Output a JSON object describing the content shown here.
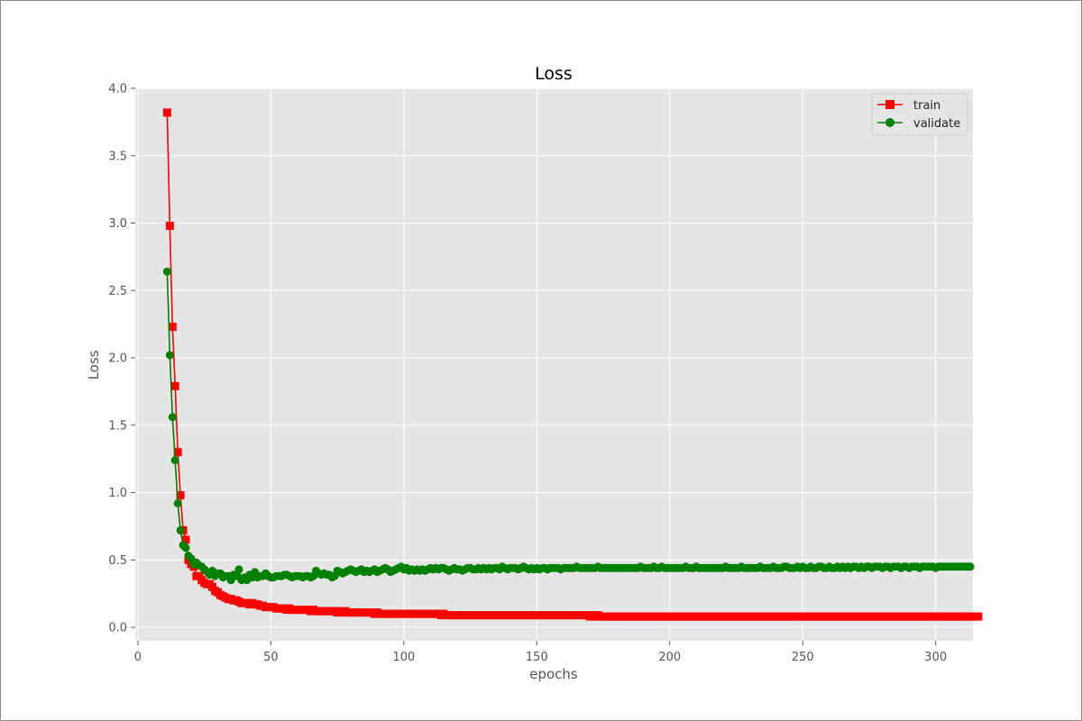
{
  "chart_data": {
    "type": "line",
    "title": "Loss",
    "xlabel": "epochs",
    "ylabel": "Loss",
    "xlim": [
      -1,
      314
    ],
    "ylim": [
      -0.1,
      4.0
    ],
    "xticks": [
      0,
      50,
      100,
      150,
      200,
      250,
      300
    ],
    "yticks": [
      0.0,
      0.5,
      1.0,
      1.5,
      2.0,
      2.5,
      3.0,
      3.5,
      4.0
    ],
    "xtick_labels": [
      "0",
      "50",
      "100",
      "150",
      "200",
      "250",
      "300"
    ],
    "ytick_labels": [
      "0.0",
      "0.5",
      "1.0",
      "1.5",
      "2.0",
      "2.5",
      "3.0",
      "3.5",
      "4.0"
    ],
    "grid": true,
    "legend_position": "top-right",
    "x_start": 11,
    "series": [
      {
        "name": "train",
        "color": "#ff0000",
        "marker": "square",
        "values": [
          3.82,
          2.98,
          2.23,
          1.79,
          1.3,
          0.98,
          0.72,
          0.65,
          0.5,
          0.47,
          0.45,
          0.38,
          0.38,
          0.35,
          0.33,
          0.32,
          0.32,
          0.3,
          0.27,
          0.26,
          0.24,
          0.23,
          0.22,
          0.21,
          0.21,
          0.2,
          0.2,
          0.19,
          0.18,
          0.18,
          0.18,
          0.17,
          0.18,
          0.17,
          0.17,
          0.16,
          0.16,
          0.15,
          0.15,
          0.15,
          0.15,
          0.14,
          0.14,
          0.14,
          0.14,
          0.13,
          0.14,
          0.13,
          0.13,
          0.13,
          0.13,
          0.13,
          0.13,
          0.13,
          0.12,
          0.13,
          0.12,
          0.12,
          0.12,
          0.12,
          0.12,
          0.12,
          0.12,
          0.12,
          0.11,
          0.12,
          0.11,
          0.12,
          0.11,
          0.11,
          0.11,
          0.11,
          0.11,
          0.11,
          0.11,
          0.11,
          0.11,
          0.11,
          0.1,
          0.11,
          0.1,
          0.1,
          0.1,
          0.1,
          0.1,
          0.1,
          0.1,
          0.1,
          0.1,
          0.1,
          0.1,
          0.1,
          0.1,
          0.1,
          0.1,
          0.1,
          0.1,
          0.1,
          0.1,
          0.1,
          0.1,
          0.1,
          0.1,
          0.09,
          0.1,
          0.09,
          0.09,
          0.09,
          0.09,
          0.09,
          0.09,
          0.09,
          0.09,
          0.09,
          0.09,
          0.09,
          0.09,
          0.09,
          0.09,
          0.09,
          0.09,
          0.09,
          0.09,
          0.09,
          0.09,
          0.09,
          0.09,
          0.09,
          0.09,
          0.09,
          0.09,
          0.09,
          0.09,
          0.09,
          0.09,
          0.09,
          0.09,
          0.09,
          0.09,
          0.09,
          0.09,
          0.09,
          0.09,
          0.09,
          0.09,
          0.09,
          0.09,
          0.09,
          0.09,
          0.09,
          0.09,
          0.09,
          0.09,
          0.09,
          0.09,
          0.09,
          0.09,
          0.09,
          0.09,
          0.08,
          0.09,
          0.08,
          0.09,
          0.08,
          0.08,
          0.08,
          0.08,
          0.08,
          0.08,
          0.08,
          0.08,
          0.08,
          0.08,
          0.08,
          0.08,
          0.08,
          0.08,
          0.08,
          0.08,
          0.08,
          0.08,
          0.08,
          0.08,
          0.08,
          0.08,
          0.08,
          0.08,
          0.08,
          0.08,
          0.08,
          0.08,
          0.08,
          0.08,
          0.08,
          0.08,
          0.08,
          0.08,
          0.08,
          0.08,
          0.08,
          0.08,
          0.08,
          0.08,
          0.08,
          0.08,
          0.08,
          0.08,
          0.08,
          0.08,
          0.08,
          0.08,
          0.08,
          0.08,
          0.08,
          0.08,
          0.08,
          0.08,
          0.08,
          0.08,
          0.08,
          0.08,
          0.08,
          0.08,
          0.08,
          0.08,
          0.08,
          0.08,
          0.08,
          0.08,
          0.08,
          0.08,
          0.08,
          0.08,
          0.08,
          0.08,
          0.08,
          0.08,
          0.08,
          0.08,
          0.08,
          0.08,
          0.08,
          0.08,
          0.08,
          0.08,
          0.08,
          0.08,
          0.08,
          0.08,
          0.08,
          0.08,
          0.08,
          0.08,
          0.08,
          0.08,
          0.08,
          0.08,
          0.08,
          0.08,
          0.08,
          0.08,
          0.08,
          0.08,
          0.08,
          0.08,
          0.08,
          0.08,
          0.08,
          0.08,
          0.08,
          0.08,
          0.08,
          0.08,
          0.08,
          0.08,
          0.08,
          0.08,
          0.08,
          0.08,
          0.08,
          0.08,
          0.08,
          0.08,
          0.08,
          0.08,
          0.08,
          0.08,
          0.08,
          0.08,
          0.08,
          0.08,
          0.08,
          0.08,
          0.08,
          0.08,
          0.08,
          0.08,
          0.08,
          0.08,
          0.08,
          0.08,
          0.08,
          0.08,
          0.08,
          0.08,
          0.08
        ]
      },
      {
        "name": "validate",
        "color": "#008000",
        "marker": "circle",
        "values": [
          2.64,
          2.02,
          1.56,
          1.24,
          0.92,
          0.72,
          0.61,
          0.59,
          0.53,
          0.51,
          0.47,
          0.48,
          0.46,
          0.45,
          0.43,
          0.41,
          0.39,
          0.42,
          0.38,
          0.4,
          0.4,
          0.37,
          0.38,
          0.38,
          0.35,
          0.39,
          0.38,
          0.43,
          0.35,
          0.37,
          0.35,
          0.39,
          0.37,
          0.41,
          0.37,
          0.38,
          0.38,
          0.4,
          0.38,
          0.37,
          0.37,
          0.38,
          0.38,
          0.38,
          0.39,
          0.39,
          0.38,
          0.37,
          0.38,
          0.38,
          0.38,
          0.37,
          0.38,
          0.38,
          0.37,
          0.38,
          0.42,
          0.4,
          0.39,
          0.4,
          0.39,
          0.39,
          0.37,
          0.38,
          0.42,
          0.41,
          0.4,
          0.41,
          0.42,
          0.43,
          0.42,
          0.41,
          0.42,
          0.43,
          0.41,
          0.42,
          0.41,
          0.42,
          0.43,
          0.41,
          0.42,
          0.43,
          0.44,
          0.43,
          0.41,
          0.42,
          0.43,
          0.44,
          0.45,
          0.43,
          0.44,
          0.42,
          0.43,
          0.42,
          0.43,
          0.42,
          0.43,
          0.42,
          0.43,
          0.44,
          0.43,
          0.44,
          0.43,
          0.44,
          0.44,
          0.43,
          0.42,
          0.43,
          0.44,
          0.43,
          0.43,
          0.42,
          0.43,
          0.44,
          0.44,
          0.43,
          0.43,
          0.44,
          0.43,
          0.44,
          0.43,
          0.44,
          0.43,
          0.44,
          0.44,
          0.43,
          0.45,
          0.44,
          0.43,
          0.44,
          0.44,
          0.44,
          0.43,
          0.44,
          0.45,
          0.44,
          0.43,
          0.44,
          0.43,
          0.44,
          0.43,
          0.44,
          0.44,
          0.43,
          0.44,
          0.44,
          0.44,
          0.44,
          0.43,
          0.44,
          0.44,
          0.44,
          0.44,
          0.44,
          0.45,
          0.44,
          0.44,
          0.44,
          0.44,
          0.44,
          0.44,
          0.44,
          0.45,
          0.44,
          0.44,
          0.44,
          0.44,
          0.44,
          0.44,
          0.44,
          0.44,
          0.44,
          0.44,
          0.44,
          0.44,
          0.44,
          0.44,
          0.44,
          0.45,
          0.44,
          0.44,
          0.44,
          0.44,
          0.45,
          0.44,
          0.44,
          0.45,
          0.44,
          0.44,
          0.44,
          0.44,
          0.44,
          0.44,
          0.44,
          0.44,
          0.45,
          0.44,
          0.44,
          0.44,
          0.45,
          0.44,
          0.44,
          0.44,
          0.44,
          0.44,
          0.44,
          0.44,
          0.44,
          0.44,
          0.44,
          0.45,
          0.44,
          0.44,
          0.44,
          0.44,
          0.44,
          0.45,
          0.44,
          0.44,
          0.44,
          0.44,
          0.44,
          0.44,
          0.45,
          0.44,
          0.44,
          0.44,
          0.44,
          0.45,
          0.44,
          0.44,
          0.44,
          0.45,
          0.45,
          0.44,
          0.44,
          0.44,
          0.45,
          0.44,
          0.45,
          0.44,
          0.44,
          0.45,
          0.44,
          0.44,
          0.45,
          0.45,
          0.44,
          0.44,
          0.45,
          0.44,
          0.44,
          0.45,
          0.44,
          0.45,
          0.44,
          0.45,
          0.44,
          0.45,
          0.45,
          0.44,
          0.45,
          0.44,
          0.45,
          0.45,
          0.44,
          0.45,
          0.45,
          0.45,
          0.44,
          0.45,
          0.45,
          0.44,
          0.45,
          0.45,
          0.45,
          0.44,
          0.45,
          0.45,
          0.44,
          0.45,
          0.45,
          0.45,
          0.44,
          0.45,
          0.45,
          0.45,
          0.45,
          0.45,
          0.44,
          0.45,
          0.45,
          0.45,
          0.45,
          0.45,
          0.45,
          0.45,
          0.45,
          0.45,
          0.45,
          0.45,
          0.45,
          0.45
        ]
      }
    ]
  }
}
